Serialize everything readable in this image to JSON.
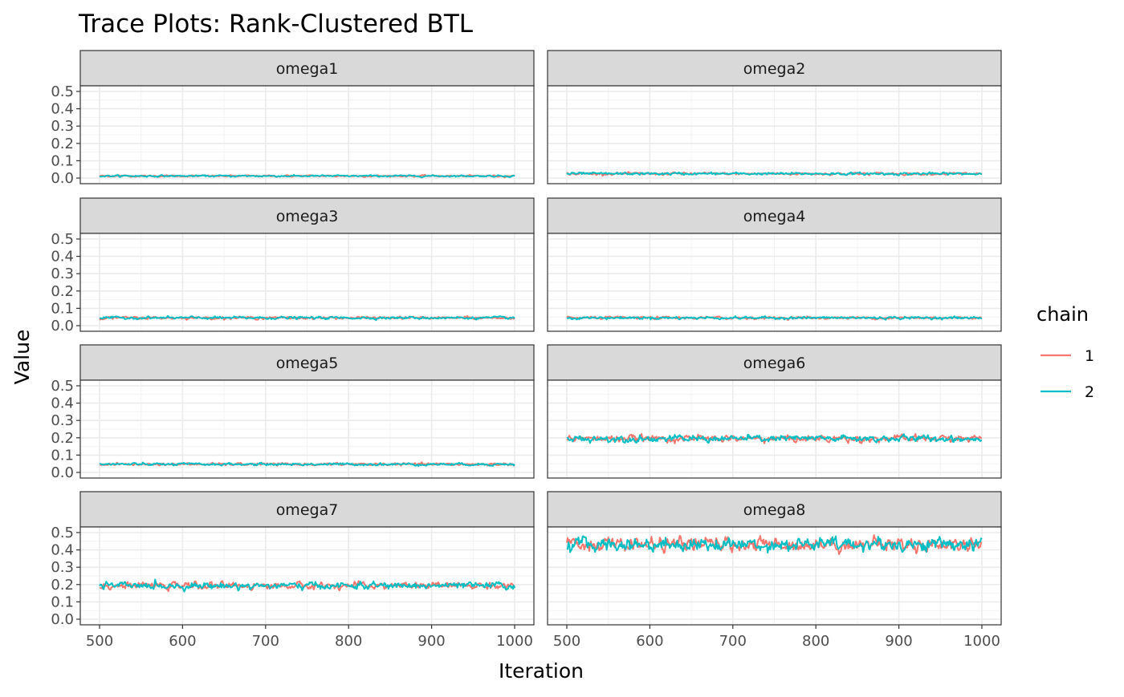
{
  "chart_data": {
    "type": "line",
    "title": "Trace Plots: Rank-Clustered BTL",
    "xlabel": "Iteration",
    "ylabel": "Value",
    "xlim": [
      500,
      1000
    ],
    "ylim": [
      0,
      0.5
    ],
    "x_ticks": [
      500,
      600,
      700,
      800,
      900,
      1000
    ],
    "y_ticks": [
      0.0,
      0.1,
      0.2,
      0.3,
      0.4,
      0.5
    ],
    "x_tick_labels": [
      "500",
      "600",
      "700",
      "800",
      "900",
      "1000"
    ],
    "y_tick_labels": [
      "0.0",
      "0.1",
      "0.2",
      "0.3",
      "0.4",
      "0.5"
    ],
    "grid": true,
    "facet_layout": "4 rows x 2 columns",
    "legend": {
      "title": "chain",
      "placement": "right",
      "entries": [
        {
          "label": "1",
          "color": "#F8766D"
        },
        {
          "label": "2",
          "color": "#00BFC4"
        }
      ]
    },
    "panels": [
      {
        "label": "omega1",
        "series": [
          {
            "name": "1",
            "mean": 0.012,
            "spread": 0.002
          },
          {
            "name": "2",
            "mean": 0.012,
            "spread": 0.002
          }
        ]
      },
      {
        "label": "omega2",
        "series": [
          {
            "name": "1",
            "mean": 0.025,
            "spread": 0.003
          },
          {
            "name": "2",
            "mean": 0.025,
            "spread": 0.003
          }
        ]
      },
      {
        "label": "omega3",
        "series": [
          {
            "name": "1",
            "mean": 0.045,
            "spread": 0.003
          },
          {
            "name": "2",
            "mean": 0.045,
            "spread": 0.003
          }
        ]
      },
      {
        "label": "omega4",
        "series": [
          {
            "name": "1",
            "mean": 0.045,
            "spread": 0.003
          },
          {
            "name": "2",
            "mean": 0.045,
            "spread": 0.003
          }
        ]
      },
      {
        "label": "omega5",
        "series": [
          {
            "name": "1",
            "mean": 0.047,
            "spread": 0.003
          },
          {
            "name": "2",
            "mean": 0.047,
            "spread": 0.003
          }
        ]
      },
      {
        "label": "omega6",
        "series": [
          {
            "name": "1",
            "mean": 0.195,
            "spread": 0.008
          },
          {
            "name": "2",
            "mean": 0.195,
            "spread": 0.008
          }
        ]
      },
      {
        "label": "omega7",
        "series": [
          {
            "name": "1",
            "mean": 0.193,
            "spread": 0.008
          },
          {
            "name": "2",
            "mean": 0.193,
            "spread": 0.008
          }
        ]
      },
      {
        "label": "omega8",
        "series": [
          {
            "name": "1",
            "mean": 0.432,
            "spread": 0.016
          },
          {
            "name": "2",
            "mean": 0.432,
            "spread": 0.016
          }
        ]
      }
    ]
  }
}
